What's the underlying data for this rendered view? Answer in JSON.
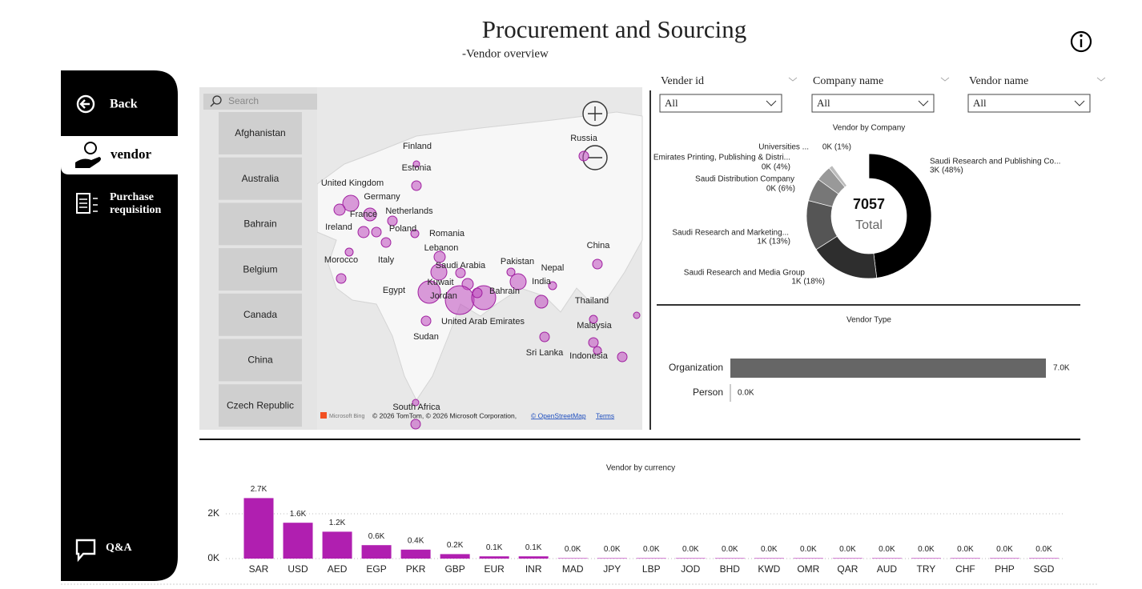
{
  "header": {
    "title": "Procurement and Sourcing",
    "subtitle": "-Vendor overview"
  },
  "nav": {
    "back": "Back",
    "vendor": "vendor",
    "purchase": [
      "Purchase",
      "requisition"
    ],
    "qa": "Q&A"
  },
  "map": {
    "search": "Search",
    "countries": [
      "Afghanistan",
      "Australia",
      "Bahrain",
      "Belgium",
      "Canada",
      "China",
      "Czech Republic"
    ],
    "labels": [
      "Finland",
      "Russia",
      "Estonia",
      "United Kingdom",
      "Germany",
      "Netherlands",
      "France",
      "Ireland",
      "Poland",
      "Romania",
      "Lebanon",
      "China",
      "Morocco",
      "Italy",
      "Saudi Arabia",
      "Pakistan",
      "Nepal",
      "Kuwait",
      "India",
      "Egypt",
      "Bahrain",
      "Jordan",
      "Thailand",
      "United Arab Emirates",
      "Malaysia",
      "Sudan",
      "Sri Lanka",
      "Indonesia",
      "South Africa"
    ],
    "bing": "Microsoft Bing",
    "attribution": "© 2026 TomTom, © 2026 Microsoft Corporation,",
    "osm": "© OpenStreetMap",
    "terms": "Terms"
  },
  "filters": [
    {
      "label": "Vender id",
      "value": "All"
    },
    {
      "label": "Company name",
      "value": "All"
    },
    {
      "label": "Vendor name",
      "value": "All"
    }
  ],
  "chart_data": [
    {
      "type": "donut",
      "title": "Vendor by Company",
      "categories": [
        "Saudi Research and Publishing Co...",
        "Saudi Research and Media Group",
        "Saudi Research and Marketing...",
        "Saudi Distribution Company",
        "Emirates Printing, Publishing & Distri...",
        "Universities ..."
      ],
      "values": [
        48,
        18,
        13,
        6,
        4,
        1
      ],
      "value_labels": [
        "3K (48%)",
        "1K (18%)",
        "1K (13%)",
        "0K (6%)",
        "0K (4%)",
        "0K (1%)"
      ],
      "colors": [
        "#000000",
        "#2e2e2e",
        "#555555",
        "#777777",
        "#999999",
        "#bbbbbb"
      ],
      "center_value": 7057,
      "center_label": "Total"
    },
    {
      "type": "hbar",
      "title": "Vendor Type",
      "categories": [
        "Organization",
        "Person"
      ],
      "values": [
        7000,
        0
      ],
      "value_labels": [
        "7.0K",
        "0.0K"
      ],
      "color": "#666666",
      "xlim": [
        0,
        7000
      ]
    },
    {
      "type": "bar",
      "title": "Vendor by currency",
      "categories": [
        "SAR",
        "USD",
        "AED",
        "EGP",
        "PKR",
        "GBP",
        "EUR",
        "INR",
        "MAD",
        "JPY",
        "LBP",
        "JOD",
        "BHD",
        "KWD",
        "OMR",
        "QAR",
        "AUD",
        "TRY",
        "CHF",
        "PHP",
        "SGD"
      ],
      "values": [
        2700,
        1600,
        1200,
        600,
        400,
        200,
        100,
        100,
        20,
        20,
        20,
        20,
        20,
        20,
        20,
        20,
        20,
        20,
        20,
        20,
        20
      ],
      "value_labels": [
        "2.7K",
        "1.6K",
        "1.2K",
        "0.6K",
        "0.4K",
        "0.2K",
        "0.1K",
        "0.1K",
        "0.0K",
        "0.0K",
        "0.0K",
        "0.0K",
        "0.0K",
        "0.0K",
        "0.0K",
        "0.0K",
        "0.0K",
        "0.0K",
        "0.0K",
        "0.0K",
        "0.0K"
      ],
      "color": "#b01fb0",
      "ylim": [
        0,
        3000
      ],
      "yticks": [
        {
          "value": 0,
          "label": "0K"
        },
        {
          "value": 2000,
          "label": "2K"
        }
      ],
      "grid": true
    }
  ]
}
